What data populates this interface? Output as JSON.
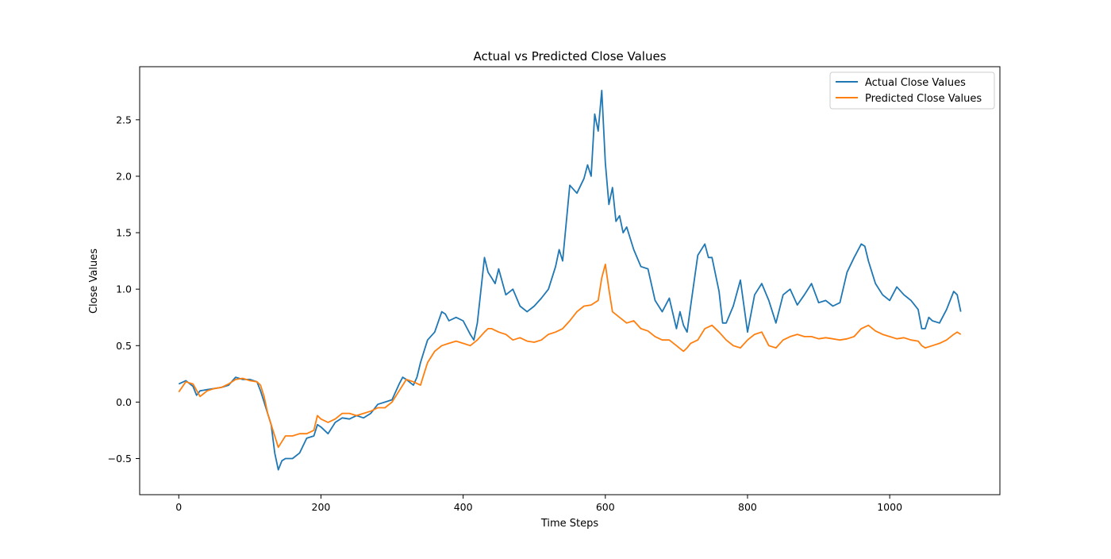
{
  "chart_data": {
    "type": "line",
    "title": "Actual vs Predicted Close Values",
    "xlabel": "Time Steps",
    "ylabel": "Close Values",
    "xlim": [
      -55,
      1155
    ],
    "ylim": [
      -0.82,
      2.97
    ],
    "xticks": [
      0,
      200,
      400,
      600,
      800,
      1000
    ],
    "yticks": [
      -0.5,
      0.0,
      0.5,
      1.0,
      1.5,
      2.0,
      2.5
    ],
    "ytick_labels": [
      "−0.5",
      "0.0",
      "0.5",
      "1.0",
      "1.5",
      "2.0",
      "2.5"
    ],
    "grid": false,
    "legend_position": "upper right",
    "series": [
      {
        "name": "Actual Close Values",
        "color": "#1f77b4",
        "x": [
          0,
          10,
          20,
          25,
          30,
          40,
          50,
          60,
          70,
          80,
          90,
          100,
          110,
          115,
          120,
          130,
          135,
          140,
          145,
          150,
          160,
          170,
          180,
          190,
          195,
          200,
          210,
          220,
          230,
          240,
          250,
          260,
          270,
          280,
          290,
          300,
          310,
          315,
          320,
          330,
          335,
          340,
          345,
          350,
          360,
          370,
          375,
          380,
          390,
          400,
          410,
          415,
          420,
          430,
          435,
          440,
          445,
          450,
          460,
          470,
          480,
          490,
          500,
          510,
          520,
          530,
          535,
          540,
          550,
          560,
          570,
          575,
          580,
          585,
          590,
          595,
          600,
          605,
          610,
          615,
          620,
          625,
          630,
          640,
          650,
          660,
          670,
          680,
          690,
          700,
          705,
          710,
          715,
          720,
          730,
          740,
          745,
          750,
          760,
          765,
          770,
          780,
          790,
          800,
          810,
          820,
          830,
          840,
          850,
          860,
          870,
          880,
          890,
          900,
          910,
          920,
          930,
          940,
          950,
          960,
          965,
          970,
          975,
          980,
          990,
          1000,
          1010,
          1020,
          1030,
          1040,
          1045,
          1050,
          1055,
          1060,
          1070,
          1080,
          1090,
          1095,
          1100
        ],
        "y": [
          0.16,
          0.19,
          0.14,
          0.06,
          0.1,
          0.11,
          0.12,
          0.13,
          0.15,
          0.22,
          0.2,
          0.2,
          0.18,
          0.1,
          0.0,
          -0.2,
          -0.45,
          -0.6,
          -0.52,
          -0.5,
          -0.5,
          -0.45,
          -0.32,
          -0.3,
          -0.2,
          -0.22,
          -0.28,
          -0.18,
          -0.14,
          -0.15,
          -0.12,
          -0.14,
          -0.1,
          -0.02,
          0.0,
          0.02,
          0.16,
          0.22,
          0.2,
          0.15,
          0.22,
          0.35,
          0.45,
          0.55,
          0.62,
          0.8,
          0.78,
          0.72,
          0.75,
          0.72,
          0.6,
          0.55,
          0.7,
          1.28,
          1.15,
          1.1,
          1.05,
          1.18,
          0.95,
          1.0,
          0.85,
          0.8,
          0.85,
          0.92,
          1.0,
          1.2,
          1.35,
          1.25,
          1.92,
          1.85,
          1.98,
          2.1,
          2.0,
          2.55,
          2.4,
          2.76,
          2.12,
          1.75,
          1.9,
          1.6,
          1.65,
          1.5,
          1.55,
          1.35,
          1.2,
          1.18,
          0.9,
          0.8,
          0.92,
          0.65,
          0.8,
          0.68,
          0.62,
          0.85,
          1.3,
          1.4,
          1.28,
          1.28,
          0.98,
          0.7,
          0.7,
          0.85,
          1.08,
          0.62,
          0.95,
          1.05,
          0.9,
          0.7,
          0.95,
          1.0,
          0.86,
          0.95,
          1.05,
          0.88,
          0.9,
          0.85,
          0.88,
          1.15,
          1.28,
          1.4,
          1.38,
          1.25,
          1.15,
          1.05,
          0.95,
          0.9,
          1.02,
          0.95,
          0.9,
          0.82,
          0.65,
          0.65,
          0.75,
          0.72,
          0.7,
          0.82,
          0.98,
          0.95,
          0.8
        ]
      },
      {
        "name": "Predicted Close Values",
        "color": "#ff7f0e",
        "x": [
          0,
          10,
          20,
          30,
          40,
          50,
          60,
          70,
          80,
          90,
          100,
          110,
          115,
          120,
          125,
          130,
          135,
          140,
          145,
          150,
          160,
          170,
          180,
          190,
          195,
          200,
          210,
          220,
          230,
          240,
          250,
          260,
          270,
          280,
          290,
          300,
          310,
          320,
          330,
          340,
          345,
          350,
          360,
          370,
          380,
          390,
          400,
          410,
          420,
          430,
          435,
          440,
          450,
          460,
          470,
          480,
          490,
          500,
          510,
          520,
          530,
          540,
          550,
          560,
          570,
          580,
          590,
          595,
          600,
          605,
          610,
          620,
          630,
          640,
          650,
          660,
          670,
          680,
          690,
          700,
          710,
          715,
          720,
          730,
          740,
          750,
          760,
          770,
          780,
          790,
          800,
          810,
          820,
          830,
          840,
          850,
          860,
          870,
          880,
          890,
          900,
          910,
          920,
          930,
          940,
          950,
          960,
          970,
          980,
          990,
          1000,
          1010,
          1020,
          1030,
          1040,
          1045,
          1050,
          1060,
          1070,
          1080,
          1090,
          1095,
          1100
        ],
        "y": [
          0.09,
          0.18,
          0.16,
          0.05,
          0.1,
          0.12,
          0.13,
          0.16,
          0.2,
          0.21,
          0.19,
          0.18,
          0.15,
          0.05,
          -0.1,
          -0.2,
          -0.3,
          -0.4,
          -0.35,
          -0.3,
          -0.3,
          -0.28,
          -0.28,
          -0.25,
          -0.12,
          -0.15,
          -0.18,
          -0.15,
          -0.1,
          -0.1,
          -0.12,
          -0.1,
          -0.08,
          -0.05,
          -0.05,
          0.0,
          0.1,
          0.2,
          0.18,
          0.15,
          0.25,
          0.35,
          0.45,
          0.5,
          0.52,
          0.54,
          0.52,
          0.5,
          0.55,
          0.62,
          0.65,
          0.65,
          0.62,
          0.6,
          0.55,
          0.57,
          0.54,
          0.53,
          0.55,
          0.6,
          0.62,
          0.65,
          0.72,
          0.8,
          0.85,
          0.86,
          0.9,
          1.1,
          1.22,
          1.0,
          0.8,
          0.75,
          0.7,
          0.72,
          0.65,
          0.63,
          0.58,
          0.55,
          0.55,
          0.5,
          0.45,
          0.48,
          0.52,
          0.55,
          0.65,
          0.68,
          0.62,
          0.55,
          0.5,
          0.48,
          0.55,
          0.6,
          0.62,
          0.5,
          0.48,
          0.55,
          0.58,
          0.6,
          0.58,
          0.58,
          0.56,
          0.57,
          0.56,
          0.55,
          0.56,
          0.58,
          0.65,
          0.68,
          0.63,
          0.6,
          0.58,
          0.56,
          0.57,
          0.55,
          0.54,
          0.5,
          0.48,
          0.5,
          0.52,
          0.55,
          0.6,
          0.62,
          0.6
        ]
      }
    ]
  }
}
